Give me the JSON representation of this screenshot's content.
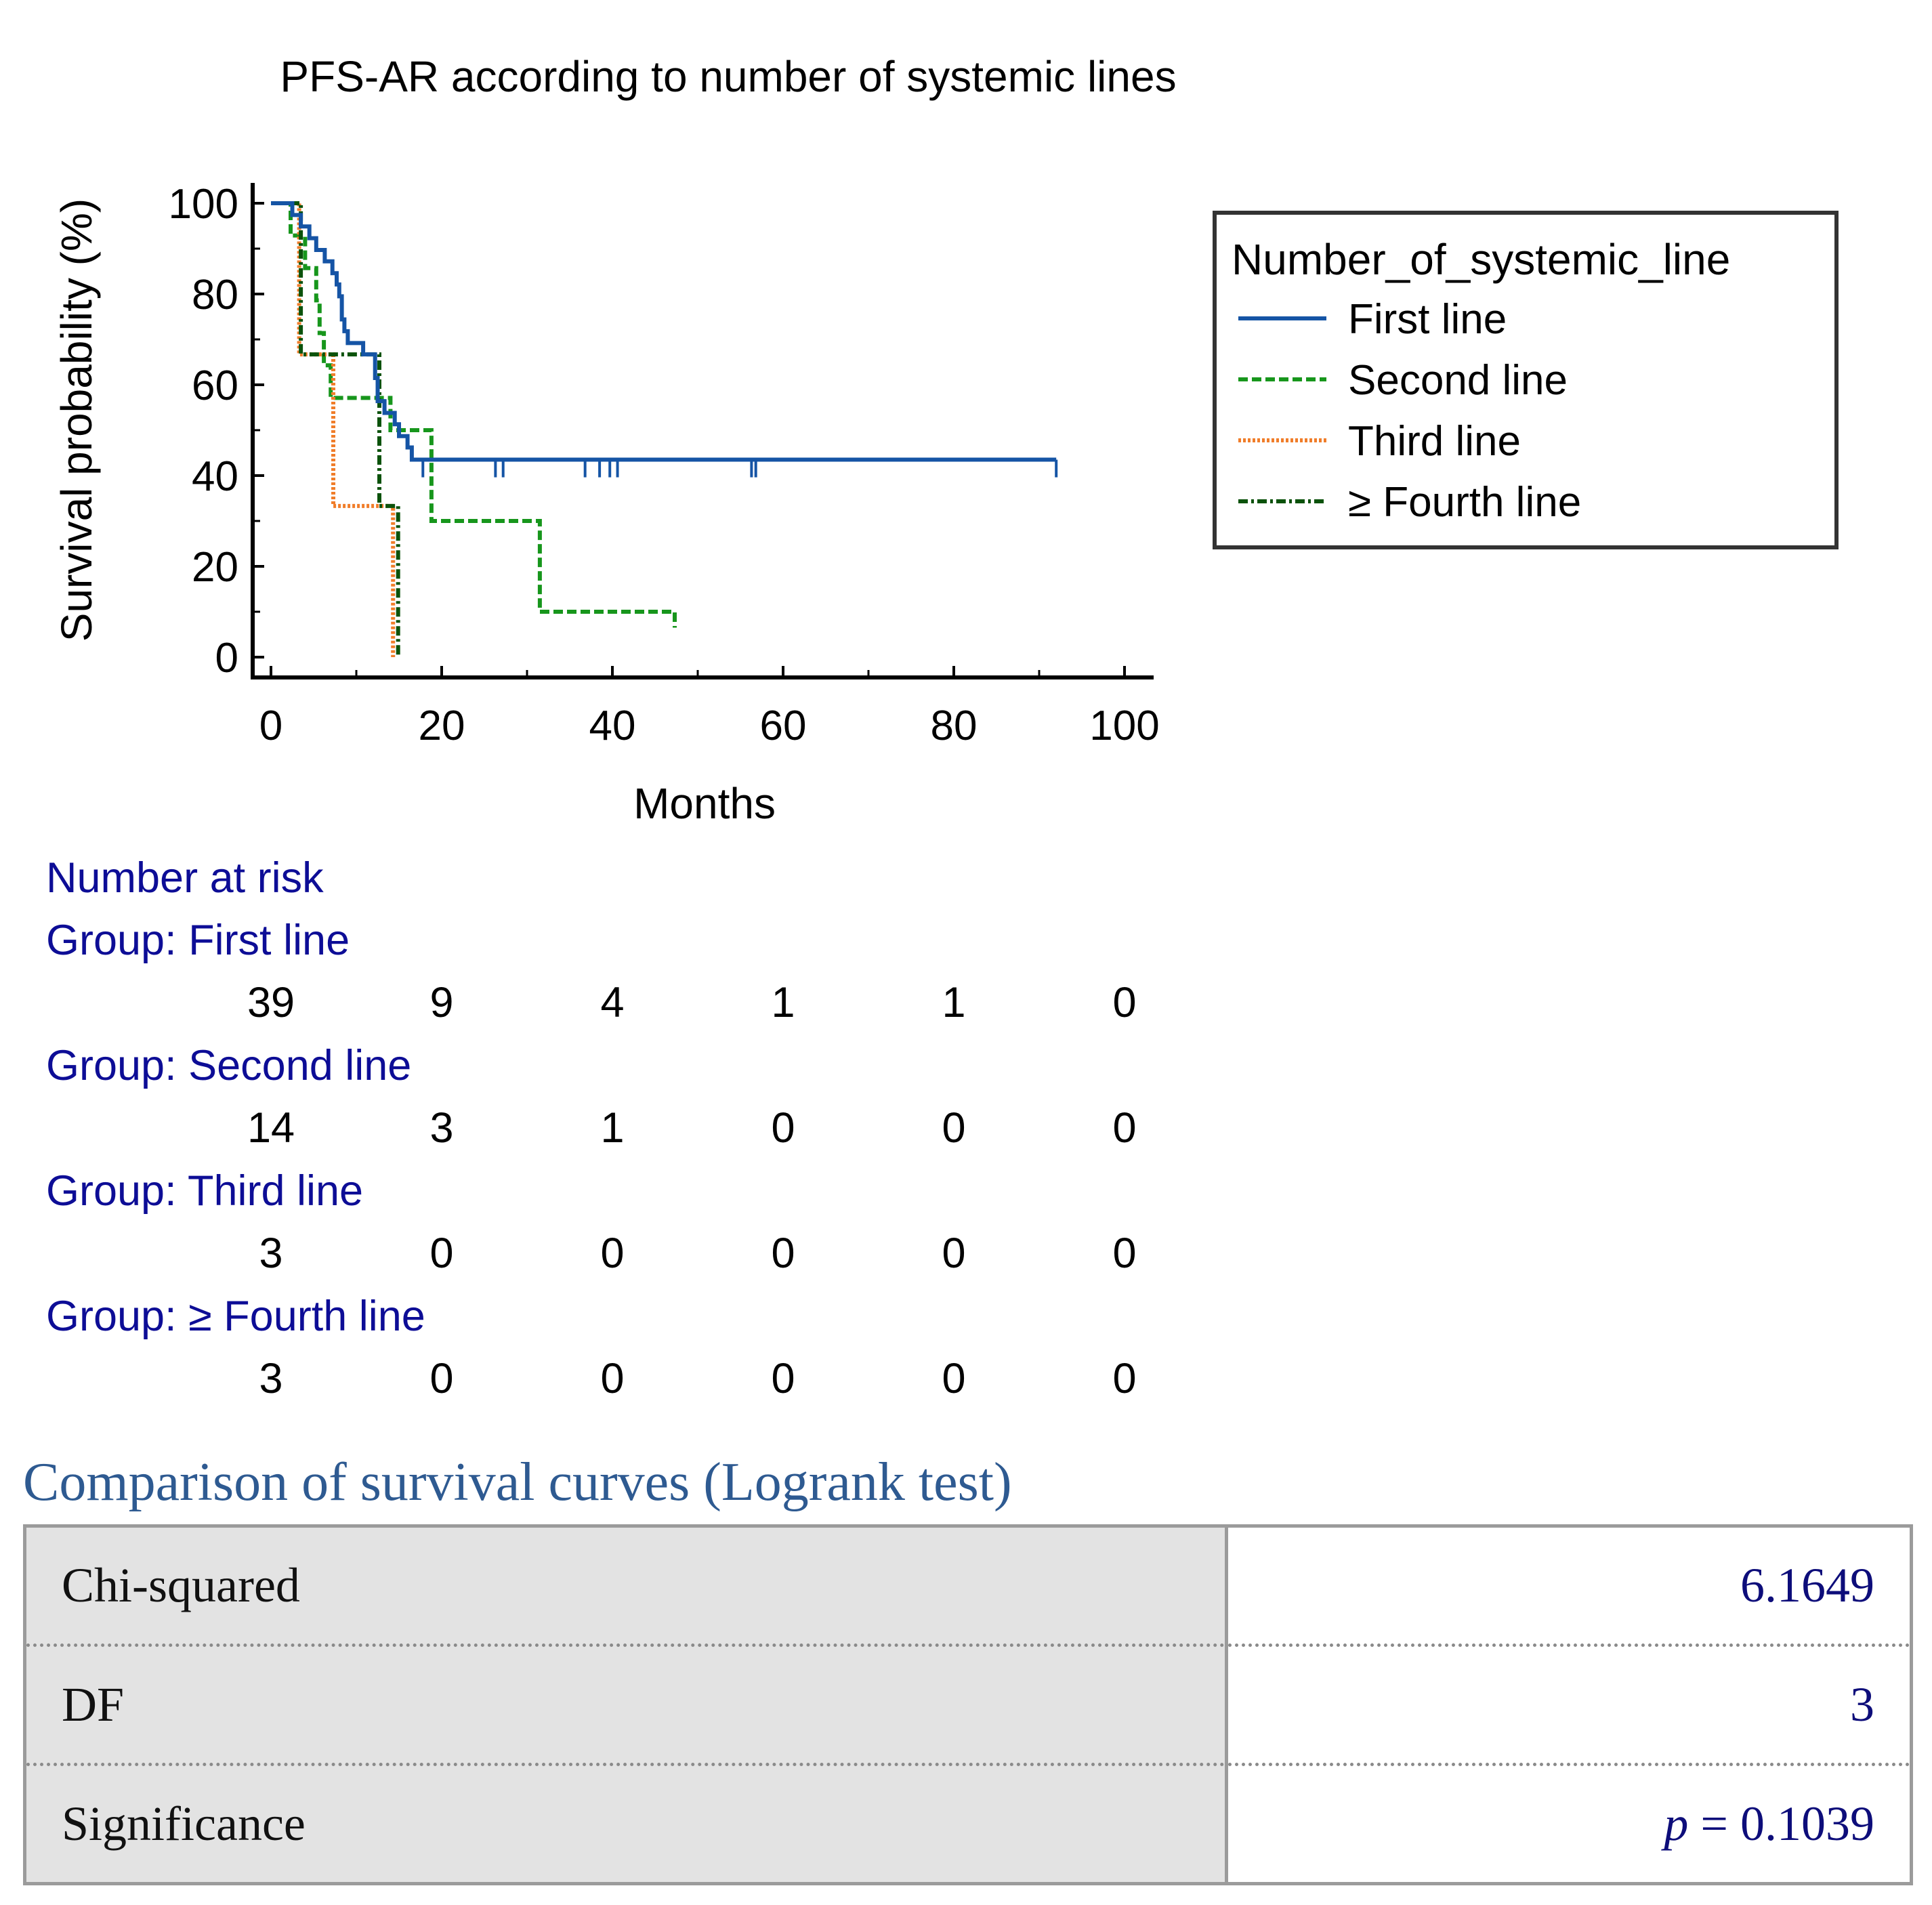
{
  "chart_data": {
    "type": "line",
    "subtype": "kaplan-meier",
    "title": "PFS-AR according to number of systemic lines",
    "xlabel": "Months",
    "ylabel": "Survival probability (%)",
    "xlim": [
      0,
      100
    ],
    "ylim": [
      0,
      100
    ],
    "xticks": [
      "0",
      "20",
      "40",
      "60",
      "80",
      "100"
    ],
    "yticks": [
      "0",
      "20",
      "40",
      "60",
      "80",
      "100"
    ],
    "grid": false,
    "legend": {
      "title": "Number_of_systemic_line",
      "placement": "right"
    },
    "series": [
      {
        "name": "First line",
        "color": "#1554a5",
        "style": "solid",
        "steps": [
          [
            0,
            100
          ],
          [
            2.5,
            100
          ],
          [
            2.5,
            97.4
          ],
          [
            3.5,
            97.4
          ],
          [
            3.5,
            94.9
          ],
          [
            4.5,
            94.9
          ],
          [
            4.5,
            92.3
          ],
          [
            5.3,
            92.3
          ],
          [
            5.3,
            89.7
          ],
          [
            6.3,
            89.7
          ],
          [
            6.3,
            87.2
          ],
          [
            7.2,
            87.2
          ],
          [
            7.2,
            84.6
          ],
          [
            7.7,
            84.6
          ],
          [
            7.7,
            82.1
          ],
          [
            8,
            82.1
          ],
          [
            8,
            79.5
          ],
          [
            8.3,
            79.5
          ],
          [
            8.3,
            74.4
          ],
          [
            8.6,
            74.4
          ],
          [
            8.6,
            71.8
          ],
          [
            9,
            71.8
          ],
          [
            9,
            69.2
          ],
          [
            10.8,
            69.2
          ],
          [
            10.8,
            66.7
          ],
          [
            12.2,
            66.7
          ],
          [
            12.2,
            61.5
          ],
          [
            12.5,
            61.5
          ],
          [
            12.5,
            56.4
          ],
          [
            13.3,
            56.4
          ],
          [
            13.3,
            53.8
          ],
          [
            14.5,
            53.8
          ],
          [
            14.5,
            51.3
          ],
          [
            15,
            51.3
          ],
          [
            15,
            48.7
          ],
          [
            16,
            48.7
          ],
          [
            16,
            46.2
          ],
          [
            16.5,
            46.2
          ],
          [
            16.5,
            43.5
          ],
          [
            92,
            43.5
          ]
        ],
        "censors": [
          17.8,
          26.3,
          27.2,
          36.8,
          38.5,
          39.7,
          40.6,
          56.3,
          56.8,
          92
        ]
      },
      {
        "name": "Second line",
        "color": "#17961c",
        "style": "dashed",
        "steps": [
          [
            0,
            100
          ],
          [
            2.3,
            100
          ],
          [
            2.3,
            92.9
          ],
          [
            4,
            92.9
          ],
          [
            4,
            85.7
          ],
          [
            5.3,
            85.7
          ],
          [
            5.3,
            78.6
          ],
          [
            5.7,
            78.6
          ],
          [
            5.7,
            71.4
          ],
          [
            6.2,
            71.4
          ],
          [
            6.2,
            64.3
          ],
          [
            7,
            64.3
          ],
          [
            7,
            57.1
          ],
          [
            14,
            57.1
          ],
          [
            14,
            50
          ],
          [
            18.8,
            50
          ],
          [
            18.8,
            30
          ],
          [
            31.5,
            30
          ],
          [
            31.5,
            10
          ],
          [
            47.3,
            10
          ],
          [
            47.3,
            6.5
          ]
        ],
        "censors": []
      },
      {
        "name": "Third line",
        "color": "#f07d2a",
        "style": "dotted",
        "steps": [
          [
            0,
            100
          ],
          [
            3.3,
            100
          ],
          [
            3.3,
            66.7
          ],
          [
            7.3,
            66.7
          ],
          [
            7.3,
            33.3
          ],
          [
            14.3,
            33.3
          ],
          [
            14.3,
            0
          ]
        ],
        "censors": []
      },
      {
        "name": "≥ Fourth line",
        "color": "#0b520b",
        "style": "dashdot",
        "steps": [
          [
            0,
            100
          ],
          [
            3.5,
            100
          ],
          [
            3.5,
            66.7
          ],
          [
            12.7,
            66.7
          ],
          [
            12.7,
            33.3
          ],
          [
            14.9,
            33.3
          ],
          [
            14.9,
            0
          ]
        ],
        "censors": []
      }
    ],
    "risk_table": {
      "title": "Number at risk",
      "groups": [
        {
          "label": "Group: First line",
          "values": [
            "39",
            "9",
            "4",
            "1",
            "1",
            "0"
          ]
        },
        {
          "label": "Group: Second line",
          "values": [
            "14",
            "3",
            "1",
            "0",
            "0",
            "0"
          ]
        },
        {
          "label": "Group: Third line",
          "values": [
            "3",
            "0",
            "0",
            "0",
            "0",
            "0"
          ]
        },
        {
          "label": "Group: ≥ Fourth line",
          "values": [
            "3",
            "0",
            "0",
            "0",
            "0",
            "0"
          ]
        }
      ]
    }
  },
  "logrank": {
    "title": "Comparison of survival curves (Logrank test)",
    "rows": [
      {
        "label": "Chi-squared",
        "value": "6.1649"
      },
      {
        "label": "DF",
        "value": "3"
      },
      {
        "label": "Significance",
        "value_prefix": "p",
        "value": " = 0.1039"
      }
    ]
  }
}
